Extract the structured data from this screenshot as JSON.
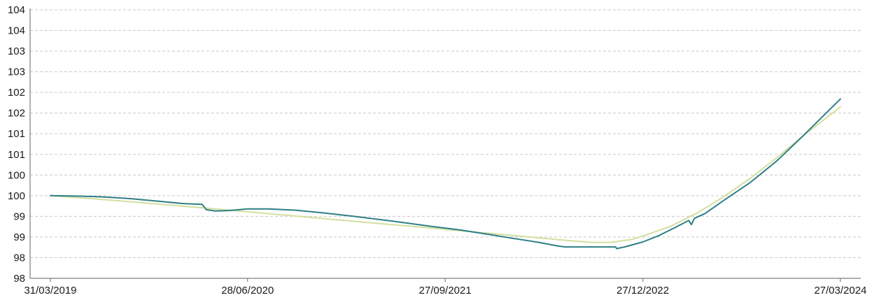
{
  "chart_data": {
    "type": "line",
    "title": "",
    "xlabel": "",
    "ylabel": "",
    "grid": true,
    "legend": "none",
    "ylim": [
      98,
      104
    ],
    "y_tick_values": [
      98,
      98.5,
      99,
      99.5,
      100,
      100.5,
      101,
      101.5,
      102,
      102.5,
      103,
      103.5,
      104,
      104.5
    ],
    "y_tick_labels": [
      "98",
      "98",
      "99",
      "99",
      "100",
      "100",
      "101",
      "101",
      "102",
      "102",
      "103",
      "103",
      "104",
      "104"
    ],
    "xlim": [
      "2019-03-31",
      "2024-03-27"
    ],
    "x_ticks": [
      {
        "date": "2019-03-31",
        "label": "31/03/2019"
      },
      {
        "date": "2020-06-28",
        "label": "28/06/2020"
      },
      {
        "date": "2021-09-27",
        "label": "27/09/2021"
      },
      {
        "date": "2022-12-27",
        "label": "27/12/2022"
      },
      {
        "date": "2024-03-27",
        "label": "27/03/2024"
      }
    ],
    "series": [
      {
        "color": "#2e7f86",
        "points": [
          [
            "2019-03-31",
            100.0
          ],
          [
            "2019-06-01",
            99.99
          ],
          [
            "2019-08-01",
            99.97
          ],
          [
            "2019-10-01",
            99.93
          ],
          [
            "2019-12-01",
            99.87
          ],
          [
            "2020-02-01",
            99.81
          ],
          [
            "2020-03-15",
            99.79
          ],
          [
            "2020-03-25",
            99.66
          ],
          [
            "2020-04-15",
            99.63
          ],
          [
            "2020-05-15",
            99.64
          ],
          [
            "2020-06-28",
            99.68
          ],
          [
            "2020-08-15",
            99.68
          ],
          [
            "2020-10-15",
            99.65
          ],
          [
            "2020-12-15",
            99.59
          ],
          [
            "2021-03-01",
            99.5
          ],
          [
            "2021-06-01",
            99.38
          ],
          [
            "2021-09-01",
            99.25
          ],
          [
            "2021-11-01",
            99.17
          ],
          [
            "2022-01-01",
            99.07
          ],
          [
            "2022-03-01",
            98.97
          ],
          [
            "2022-05-01",
            98.87
          ],
          [
            "2022-06-15",
            98.78
          ],
          [
            "2022-07-01",
            98.76
          ],
          [
            "2022-09-01",
            98.76
          ],
          [
            "2022-10-25",
            98.76
          ],
          [
            "2022-10-28",
            98.72
          ],
          [
            "2022-11-15",
            98.76
          ],
          [
            "2022-12-27",
            98.88
          ],
          [
            "2023-02-01",
            99.03
          ],
          [
            "2023-03-10",
            99.22
          ],
          [
            "2023-04-12",
            99.4
          ],
          [
            "2023-04-18",
            99.3
          ],
          [
            "2023-04-25",
            99.45
          ],
          [
            "2023-05-20",
            99.57
          ],
          [
            "2023-07-01",
            99.88
          ],
          [
            "2023-09-01",
            100.32
          ],
          [
            "2023-11-01",
            100.84
          ],
          [
            "2024-01-01",
            101.45
          ],
          [
            "2024-03-27",
            102.34
          ]
        ]
      },
      {
        "color": "#d3df9f",
        "points": [
          [
            "2019-03-31",
            100.0
          ],
          [
            "2019-09-01",
            99.88
          ],
          [
            "2020-03-01",
            99.72
          ],
          [
            "2020-09-01",
            99.55
          ],
          [
            "2021-03-01",
            99.38
          ],
          [
            "2021-09-01",
            99.21
          ],
          [
            "2022-03-01",
            99.04
          ],
          [
            "2022-07-01",
            98.92
          ],
          [
            "2022-09-01",
            98.87
          ],
          [
            "2022-10-15",
            98.87
          ],
          [
            "2022-12-01",
            98.94
          ],
          [
            "2022-12-27",
            99.02
          ],
          [
            "2023-03-01",
            99.26
          ],
          [
            "2023-05-01",
            99.58
          ],
          [
            "2023-07-01",
            99.97
          ],
          [
            "2023-09-01",
            100.42
          ],
          [
            "2023-11-01",
            100.92
          ],
          [
            "2024-01-01",
            101.45
          ],
          [
            "2024-03-27",
            102.15
          ]
        ]
      }
    ]
  }
}
